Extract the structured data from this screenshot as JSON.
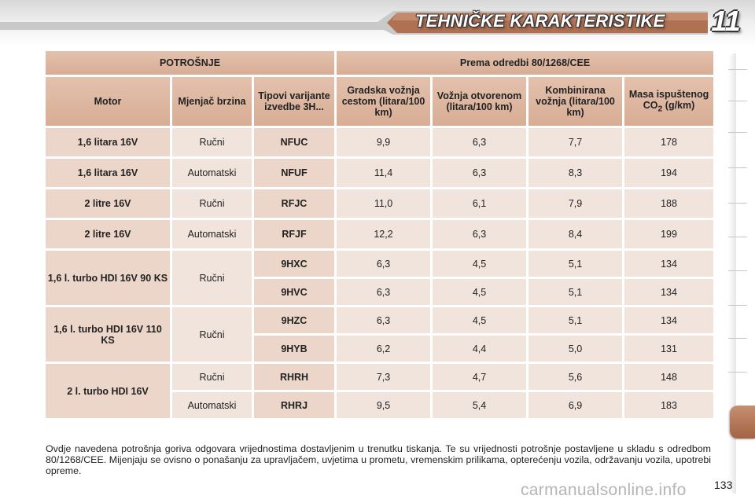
{
  "header": {
    "title": "TEHNIČKE KARAKTERISTIKE",
    "chapter": "11"
  },
  "table": {
    "group_headers": {
      "left": "POTROŠNJE",
      "right": "Prema odredbi 80/1268/CEE"
    },
    "columns": {
      "motor": "Motor",
      "gearbox": "Mjenjač brzina",
      "variant": "Tipovi varijante izvedbe 3H...",
      "urban": "Gradska vožnja cestom (litara/100 km)",
      "extra": "Vožnja otvorenom (litara/100 km)",
      "combined": "Kombinirana vožnja (litara/100 km)",
      "co2_prefix": "Masa ispuštenog CO",
      "co2_sub": "2",
      "co2_suffix": " (g/km)"
    },
    "engines": [
      "1,6 litara 16V",
      "1,6 litara 16V",
      "2 litre 16V",
      "2 litre 16V",
      "1,6 l. turbo HDI 16V 90 KS",
      "1,6 l. turbo HDI 16V 110 KS",
      "2 l. turbo HDI 16V"
    ],
    "rows": [
      {
        "gearbox": "Ručni",
        "variant": "NFUC",
        "urban": "9,9",
        "extra": "6,3",
        "combined": "7,7",
        "co2": "178"
      },
      {
        "gearbox": "Automatski",
        "variant": "NFUF",
        "urban": "11,4",
        "extra": "6,3",
        "combined": "8,3",
        "co2": "194"
      },
      {
        "gearbox": "Ručni",
        "variant": "RFJC",
        "urban": "11,0",
        "extra": "6,1",
        "combined": "7,9",
        "co2": "188"
      },
      {
        "gearbox": "Automatski",
        "variant": "RFJF",
        "urban": "12,2",
        "extra": "6,3",
        "combined": "8,4",
        "co2": "199"
      },
      {
        "gearbox": "Ručni",
        "variant": "9HXC",
        "urban": "6,3",
        "extra": "4,5",
        "combined": "5,1",
        "co2": "134"
      },
      {
        "gearbox": "",
        "variant": "9HVC",
        "urban": "6,3",
        "extra": "4,5",
        "combined": "5,1",
        "co2": "134"
      },
      {
        "gearbox": "Ručni",
        "variant": "9HZC",
        "urban": "6,3",
        "extra": "4,5",
        "combined": "5,1",
        "co2": "134"
      },
      {
        "gearbox": "",
        "variant": "9HYB",
        "urban": "6,2",
        "extra": "4,4",
        "combined": "5,0",
        "co2": "131"
      },
      {
        "gearbox": "Ručni",
        "variant": "RHRH",
        "urban": "7,3",
        "extra": "4,7",
        "combined": "5,6",
        "co2": "148"
      },
      {
        "gearbox": "Automatski",
        "variant": "RHRJ",
        "urban": "9,5",
        "extra": "5,4",
        "combined": "6,9",
        "co2": "183"
      }
    ]
  },
  "note": "Ovdje navedena potrošnja goriva odgovara vrijednostima dostavljenim u trenutku tiskanja. Te su vrijednosti potrošnje posta­vljene u skladu s odredbom 80/1268/CEE. Mijenjaju se ovisno o ponašanju za upravljačem, uvjetima u prometu, vremenskim prilikama, opterećenju vozila, održavanju vozila, upotrebi opreme.",
  "page_number": "133",
  "watermark": "carmanualsonline.info",
  "colors": {
    "header_cell": "#dcb39c",
    "row_label": "#ecd6c9",
    "value_cell": "#f1e4dc",
    "accent": "#a86a4c"
  }
}
